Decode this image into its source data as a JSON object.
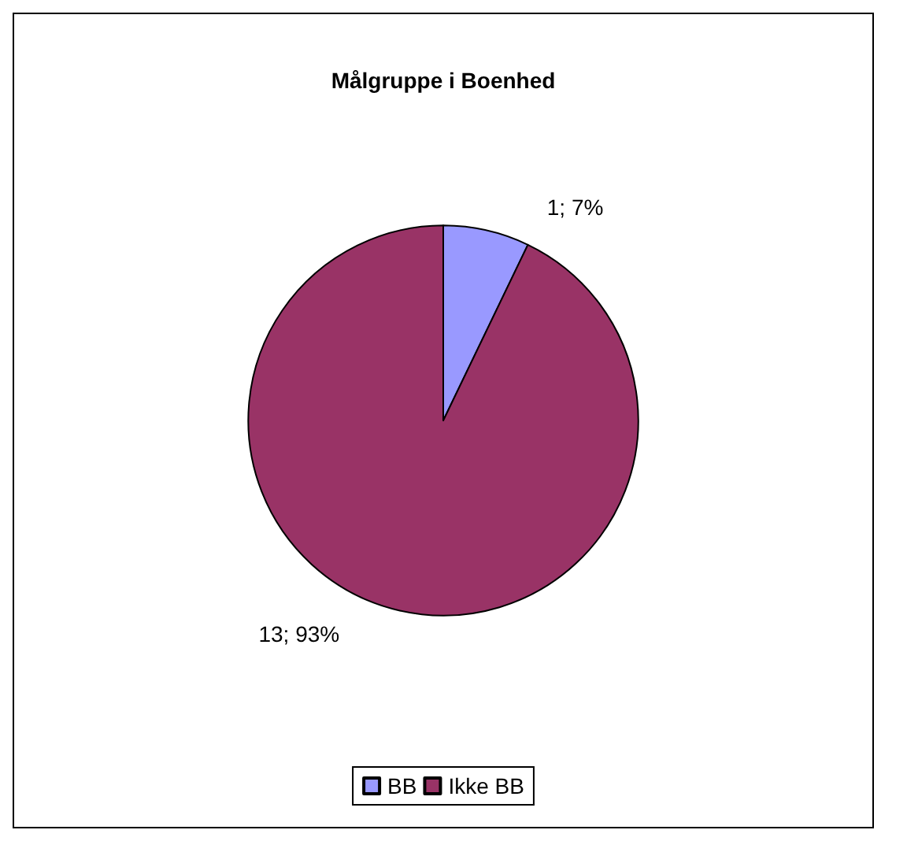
{
  "chart_data": {
    "type": "pie",
    "title": "Målgruppe i Boenhed",
    "categories": [
      "BB",
      "Ikke BB"
    ],
    "values": [
      1,
      13
    ],
    "colors": [
      "#9999ff",
      "#993366"
    ],
    "value_labels": [
      "1; 7%",
      "13; 93%"
    ],
    "legend": "bottom"
  }
}
